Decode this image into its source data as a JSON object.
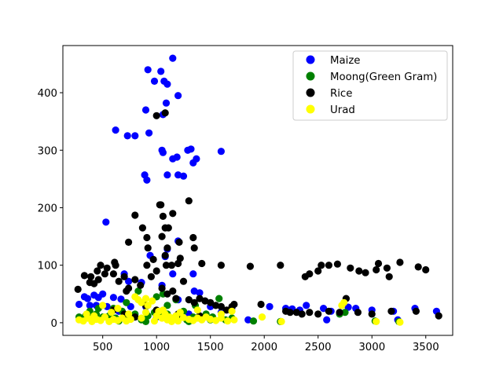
{
  "chart_data": {
    "type": "scatter",
    "title": "",
    "xlabel": "",
    "ylabel": "",
    "xlim": [
      130,
      3750
    ],
    "ylim": [
      -22,
      482
    ],
    "xticks": [
      500,
      1000,
      1500,
      2000,
      2500,
      3000,
      3500
    ],
    "yticks": [
      0,
      100,
      200,
      300,
      400
    ],
    "grid": false,
    "legend_position": "top-right",
    "series": [
      {
        "name": "Maize",
        "color": "#0000ff",
        "points": [
          [
            1150,
            460
          ],
          [
            920,
            440
          ],
          [
            1040,
            437
          ],
          [
            1070,
            420
          ],
          [
            980,
            420
          ],
          [
            1100,
            415
          ],
          [
            1200,
            395
          ],
          [
            1090,
            382
          ],
          [
            900,
            370
          ],
          [
            1060,
            362
          ],
          [
            620,
            335
          ],
          [
            930,
            330
          ],
          [
            730,
            325
          ],
          [
            800,
            325
          ],
          [
            1320,
            302
          ],
          [
            1050,
            300
          ],
          [
            1290,
            300
          ],
          [
            1060,
            296
          ],
          [
            1190,
            288
          ],
          [
            1600,
            298
          ],
          [
            1150,
            285
          ],
          [
            1370,
            285
          ],
          [
            1340,
            278
          ],
          [
            890,
            257
          ],
          [
            1100,
            257
          ],
          [
            1200,
            257
          ],
          [
            1250,
            255
          ],
          [
            910,
            248
          ],
          [
            530,
            175
          ],
          [
            1200,
            142
          ],
          [
            1100,
            128
          ],
          [
            940,
            117
          ],
          [
            1080,
            115
          ],
          [
            700,
            85
          ],
          [
            1150,
            85
          ],
          [
            1340,
            85
          ],
          [
            860,
            70
          ],
          [
            740,
            72
          ],
          [
            1050,
            65
          ],
          [
            330,
            45
          ],
          [
            420,
            48
          ],
          [
            500,
            50
          ],
          [
            360,
            42
          ],
          [
            460,
            44
          ],
          [
            600,
            44
          ],
          [
            670,
            41
          ],
          [
            280,
            32
          ],
          [
            380,
            30
          ],
          [
            540,
            28
          ],
          [
            440,
            30
          ],
          [
            760,
            28
          ],
          [
            900,
            28
          ],
          [
            1200,
            40
          ],
          [
            1350,
            55
          ],
          [
            1400,
            52
          ],
          [
            1500,
            28
          ],
          [
            1700,
            26
          ],
          [
            2050,
            28
          ],
          [
            2200,
            25
          ],
          [
            2260,
            24
          ],
          [
            2330,
            22
          ],
          [
            2390,
            30
          ],
          [
            2550,
            25
          ],
          [
            2620,
            20
          ],
          [
            2780,
            27
          ],
          [
            2850,
            25
          ],
          [
            3000,
            22
          ],
          [
            3200,
            20
          ],
          [
            3400,
            25
          ],
          [
            3600,
            20
          ],
          [
            1850,
            5
          ],
          [
            2580,
            5
          ],
          [
            3240,
            5
          ],
          [
            1000,
            10
          ],
          [
            1300,
            15
          ],
          [
            650,
            20
          ],
          [
            1600,
            18
          ]
        ]
      },
      {
        "name": "Moong(Green Gram)",
        "color": "#008000",
        "points": [
          [
            280,
            10
          ],
          [
            340,
            12
          ],
          [
            390,
            8
          ],
          [
            440,
            15
          ],
          [
            500,
            10
          ],
          [
            560,
            12
          ],
          [
            620,
            8
          ],
          [
            680,
            20
          ],
          [
            740,
            10
          ],
          [
            800,
            15
          ],
          [
            860,
            5
          ],
          [
            920,
            12
          ],
          [
            980,
            18
          ],
          [
            1040,
            10
          ],
          [
            1100,
            15
          ],
          [
            1160,
            8
          ],
          [
            1220,
            12
          ],
          [
            1280,
            5
          ],
          [
            1340,
            10
          ],
          [
            1400,
            8
          ],
          [
            1460,
            15
          ],
          [
            1520,
            10
          ],
          [
            1580,
            42
          ],
          [
            1640,
            5
          ],
          [
            1700,
            8
          ],
          [
            1900,
            3
          ],
          [
            2150,
            2
          ],
          [
            2700,
            15
          ],
          [
            2750,
            18
          ],
          [
            3030,
            3
          ],
          [
            3250,
            2
          ],
          [
            600,
            25
          ],
          [
            720,
            35
          ],
          [
            830,
            55
          ],
          [
            1000,
            45
          ],
          [
            1100,
            30
          ],
          [
            1250,
            20
          ],
          [
            380,
            20
          ],
          [
            460,
            25
          ],
          [
            560,
            5
          ],
          [
            650,
            3
          ],
          [
            1060,
            50
          ],
          [
            1180,
            40
          ],
          [
            1360,
            30
          ],
          [
            900,
            2
          ],
          [
            1500,
            5
          ],
          [
            1300,
            2
          ]
        ]
      },
      {
        "name": "Rice",
        "color": "#000000",
        "points": [
          [
            1000,
            360
          ],
          [
            1080,
            365
          ],
          [
            1300,
            212
          ],
          [
            1030,
            205
          ],
          [
            800,
            187
          ],
          [
            1040,
            205
          ],
          [
            1060,
            185
          ],
          [
            1150,
            190
          ],
          [
            870,
            165
          ],
          [
            1080,
            165
          ],
          [
            1110,
            165
          ],
          [
            1050,
            150
          ],
          [
            910,
            148
          ],
          [
            1340,
            148
          ],
          [
            1100,
            130
          ],
          [
            920,
            130
          ],
          [
            740,
            140
          ],
          [
            1210,
            140
          ],
          [
            1350,
            130
          ],
          [
            1080,
            117
          ],
          [
            1220,
            112
          ],
          [
            910,
            100
          ],
          [
            970,
            110
          ],
          [
            1090,
            100
          ],
          [
            1140,
            100
          ],
          [
            1200,
            103
          ],
          [
            1420,
            103
          ],
          [
            1600,
            100
          ],
          [
            1870,
            98
          ],
          [
            2150,
            100
          ],
          [
            2500,
            90
          ],
          [
            2530,
            100
          ],
          [
            2600,
            100
          ],
          [
            2680,
            102
          ],
          [
            2800,
            95
          ],
          [
            2880,
            90
          ],
          [
            2940,
            87
          ],
          [
            3040,
            92
          ],
          [
            3060,
            103
          ],
          [
            3140,
            95
          ],
          [
            3160,
            80
          ],
          [
            3260,
            105
          ],
          [
            3430,
            97
          ],
          [
            3500,
            92
          ],
          [
            2380,
            80
          ],
          [
            2420,
            85
          ],
          [
            270,
            58
          ],
          [
            330,
            82
          ],
          [
            380,
            70
          ],
          [
            390,
            80
          ],
          [
            420,
            68
          ],
          [
            450,
            90
          ],
          [
            460,
            75
          ],
          [
            480,
            100
          ],
          [
            520,
            85
          ],
          [
            540,
            95
          ],
          [
            600,
            85
          ],
          [
            610,
            105
          ],
          [
            620,
            100
          ],
          [
            650,
            72
          ],
          [
            700,
            80
          ],
          [
            720,
            55
          ],
          [
            740,
            60
          ],
          [
            800,
            75
          ],
          [
            850,
            65
          ],
          [
            950,
            80
          ],
          [
            1000,
            90
          ],
          [
            1050,
            60
          ],
          [
            1100,
            50
          ],
          [
            1150,
            55
          ],
          [
            1180,
            42
          ],
          [
            1250,
            72
          ],
          [
            1300,
            40
          ],
          [
            1350,
            35
          ],
          [
            1400,
            42
          ],
          [
            1450,
            38
          ],
          [
            1500,
            35
          ],
          [
            1550,
            30
          ],
          [
            1600,
            28
          ],
          [
            1650,
            22
          ],
          [
            1700,
            28
          ],
          [
            1720,
            32
          ],
          [
            1970,
            32
          ],
          [
            2200,
            20
          ],
          [
            2300,
            18
          ],
          [
            2350,
            15
          ],
          [
            2420,
            18
          ],
          [
            2500,
            15
          ],
          [
            2600,
            20
          ],
          [
            2700,
            18
          ],
          [
            2760,
            42
          ],
          [
            2870,
            18
          ],
          [
            3000,
            15
          ],
          [
            3180,
            20
          ],
          [
            3410,
            20
          ],
          [
            3620,
            12
          ],
          [
            2240,
            18
          ],
          [
            1400,
            12
          ],
          [
            1200,
            15
          ],
          [
            1000,
            22
          ],
          [
            900,
            30
          ],
          [
            800,
            10
          ],
          [
            700,
            15
          ],
          [
            600,
            22
          ]
        ]
      },
      {
        "name": "Urad",
        "color": "#ffff00",
        "points": [
          [
            280,
            5
          ],
          [
            320,
            3
          ],
          [
            360,
            8
          ],
          [
            400,
            2
          ],
          [
            440,
            6
          ],
          [
            480,
            4
          ],
          [
            520,
            10
          ],
          [
            560,
            2
          ],
          [
            600,
            6
          ],
          [
            640,
            4
          ],
          [
            680,
            8
          ],
          [
            720,
            3
          ],
          [
            760,
            6
          ],
          [
            800,
            45
          ],
          [
            830,
            40
          ],
          [
            860,
            35
          ],
          [
            900,
            42
          ],
          [
            920,
            30
          ],
          [
            960,
            38
          ],
          [
            1000,
            12
          ],
          [
            1020,
            20
          ],
          [
            1050,
            8
          ],
          [
            1080,
            15
          ],
          [
            1100,
            5
          ],
          [
            1120,
            10
          ],
          [
            1150,
            7
          ],
          [
            1180,
            12
          ],
          [
            1200,
            3
          ],
          [
            1250,
            9
          ],
          [
            1300,
            6
          ],
          [
            1340,
            4
          ],
          [
            1380,
            8
          ],
          [
            1420,
            5
          ],
          [
            1460,
            10
          ],
          [
            1500,
            6
          ],
          [
            1550,
            4
          ],
          [
            1600,
            8
          ],
          [
            1660,
            3
          ],
          [
            1720,
            5
          ],
          [
            1980,
            10
          ],
          [
            2160,
            2
          ],
          [
            2720,
            30
          ],
          [
            2740,
            35
          ],
          [
            3040,
            2
          ],
          [
            3260,
            1
          ],
          [
            500,
            30
          ],
          [
            640,
            25
          ],
          [
            740,
            15
          ],
          [
            900,
            18
          ],
          [
            1060,
            22
          ],
          [
            1220,
            18
          ],
          [
            1380,
            22
          ],
          [
            1600,
            15
          ],
          [
            1700,
            20
          ],
          [
            350,
            15
          ],
          [
            420,
            12
          ],
          [
            580,
            18
          ],
          [
            860,
            8
          ],
          [
            980,
            3
          ],
          [
            1140,
            2
          ]
        ]
      }
    ]
  }
}
